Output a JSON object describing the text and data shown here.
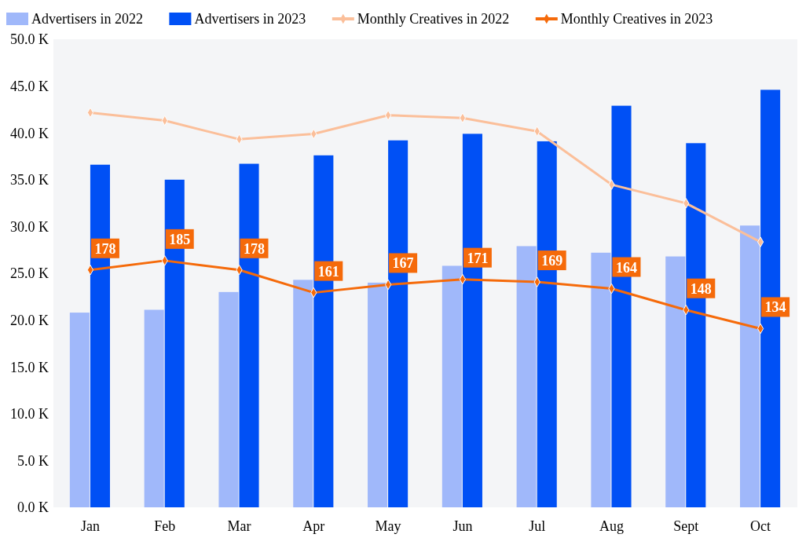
{
  "chart_data": {
    "type": "bar",
    "categories": [
      "Jan",
      "Feb",
      "Mar",
      "Apr",
      "May",
      "Jun",
      "Jul",
      "Aug",
      "Sept",
      "Oct"
    ],
    "series": [
      {
        "name": "Advertisers in 2022",
        "color": "#a0b8fa",
        "values": [
          20.8,
          21.1,
          23.0,
          24.3,
          24.0,
          25.8,
          27.9,
          27.2,
          26.8,
          30.1
        ]
      },
      {
        "name": "Advertisers in 2023",
        "color": "#0050f5",
        "values": [
          36.6,
          35.0,
          36.7,
          37.6,
          39.2,
          39.9,
          39.1,
          42.9,
          38.9,
          44.6
        ]
      },
      {
        "name": "Monthly Creatives in 2022",
        "type": "line",
        "axis": "y2",
        "color": "#fbbf9a",
        "values": [
          296,
          290,
          276,
          280,
          294,
          292,
          282,
          242,
          228,
          199
        ]
      },
      {
        "name": "Monthly Creatives in 2023",
        "type": "line",
        "axis": "y2",
        "color": "#f56a0a",
        "values": [
          178,
          185,
          178,
          161,
          167,
          171,
          169,
          164,
          148,
          134
        ],
        "value_labels": [
          "178",
          "185",
          "178",
          "161",
          "167",
          "171",
          "169",
          "164",
          "148",
          "134"
        ]
      }
    ],
    "ylim": [
      0,
      50
    ],
    "yticks": [
      {
        "value": 0,
        "label": "0.0 K"
      },
      {
        "value": 5,
        "label": "5.0 K"
      },
      {
        "value": 10,
        "label": "10.0 K"
      },
      {
        "value": 15,
        "label": "15.0 K"
      },
      {
        "value": 20,
        "label": "20.0 K"
      },
      {
        "value": 25,
        "label": "25.0 K"
      },
      {
        "value": 30,
        "label": "30.0 K"
      },
      {
        "value": 35,
        "label": "35.0 K"
      },
      {
        "value": 40,
        "label": "40.0 K"
      },
      {
        "value": 45,
        "label": "45.0 K"
      },
      {
        "value": 50,
        "label": "50.0 K"
      }
    ],
    "y2lim": [
      0,
      351
    ],
    "marker": "diamond",
    "legend": "top",
    "grid": false
  }
}
